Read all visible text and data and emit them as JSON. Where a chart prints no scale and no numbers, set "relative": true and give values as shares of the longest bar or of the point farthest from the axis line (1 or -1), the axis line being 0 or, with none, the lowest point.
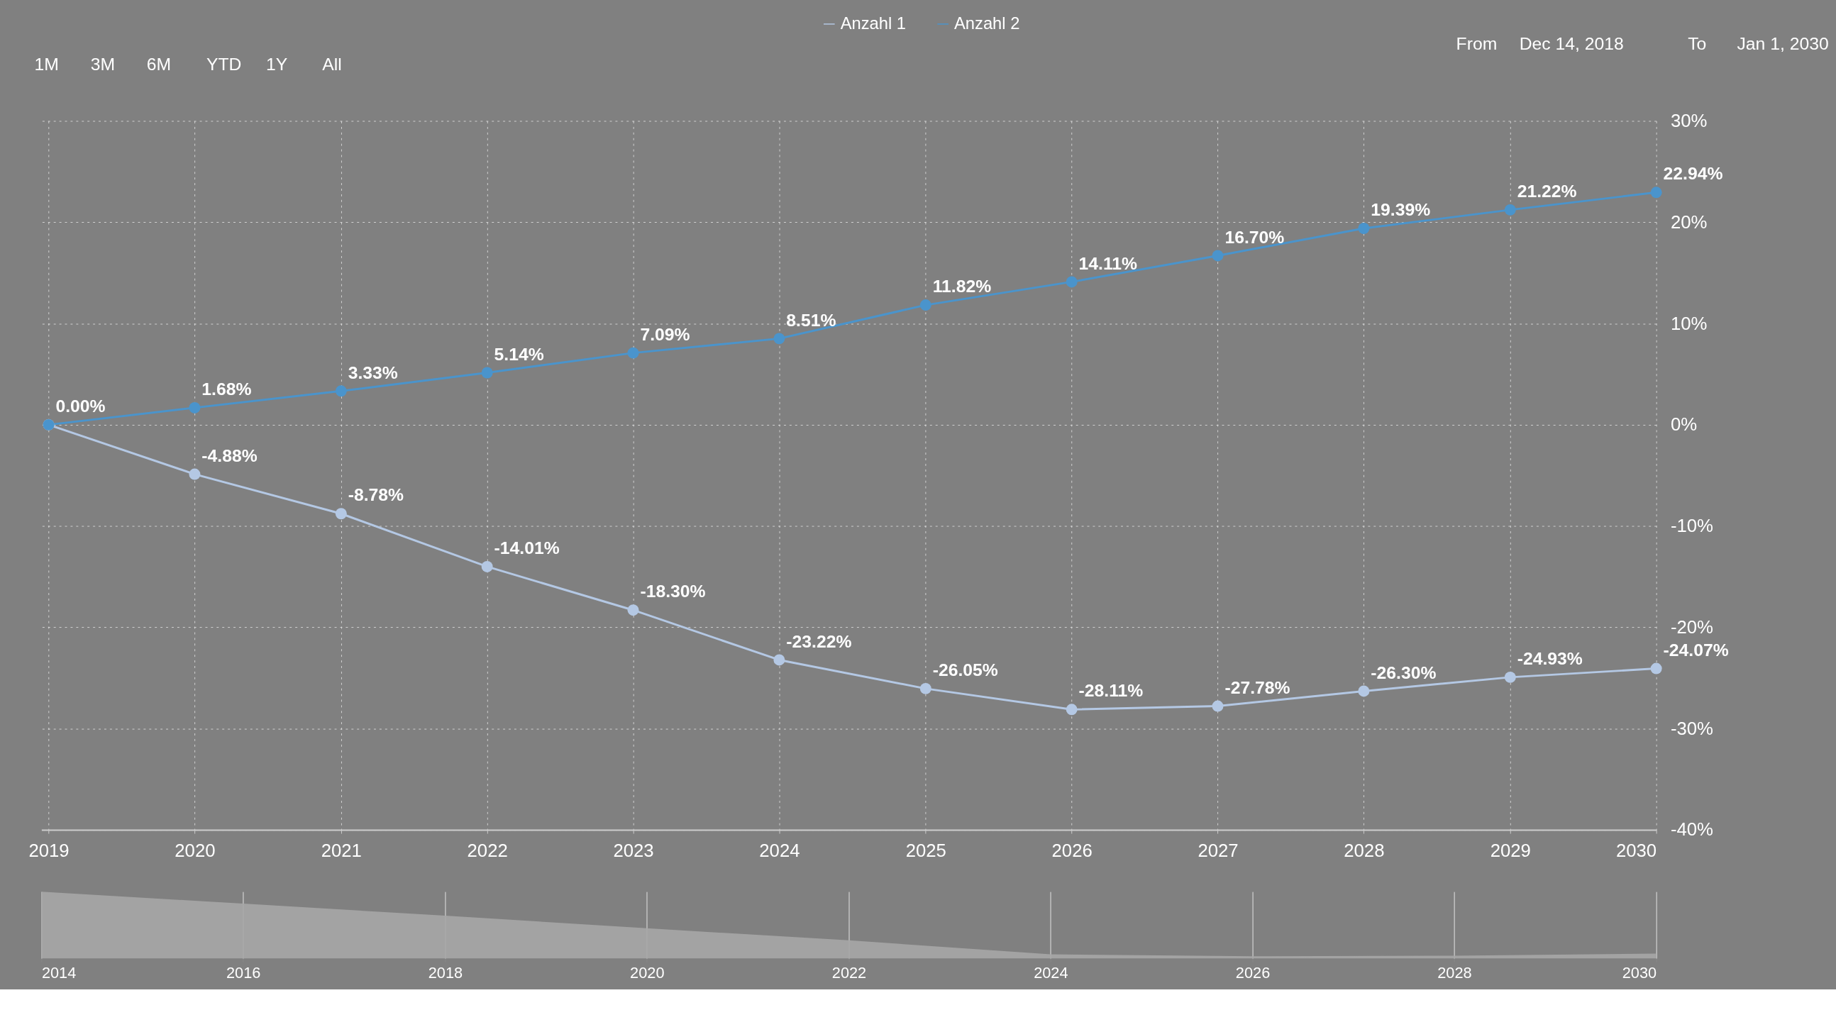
{
  "chart_data": [
    {
      "type": "line",
      "x": [
        "2019",
        "2020",
        "2021",
        "2022",
        "2023",
        "2024",
        "2025",
        "2026",
        "2027",
        "2028",
        "2029",
        "2030"
      ],
      "series": [
        {
          "name": "Anzahl 1",
          "color": "#b4c8e4",
          "values": [
            0.0,
            -4.88,
            -8.78,
            -14.01,
            -18.3,
            -23.22,
            -26.05,
            -28.11,
            -27.78,
            -26.3,
            -24.93,
            -24.07
          ],
          "value_labels": [
            null,
            "-4.88%",
            "-8.78%",
            "-14.01%",
            "-18.30%",
            "-23.22%",
            "-26.05%",
            "-28.11%",
            "-27.78%",
            "-26.30%",
            "-24.93%",
            "-24.07%"
          ]
        },
        {
          "name": "Anzahl 2",
          "color": "#4a94cc",
          "values": [
            0.0,
            1.68,
            3.33,
            5.14,
            7.09,
            8.51,
            11.82,
            14.11,
            16.7,
            19.39,
            21.22,
            22.94
          ],
          "value_labels": [
            "0.00%",
            "1.68%",
            "3.33%",
            "5.14%",
            "7.09%",
            "8.51%",
            "11.82%",
            "14.11%",
            "16.70%",
            "19.39%",
            "21.22%",
            "22.94%"
          ]
        }
      ],
      "xlim": [
        "2018-12-14",
        "2030-01-01"
      ],
      "xticks": [
        "2019",
        "2020",
        "2021",
        "2022",
        "2023",
        "2024",
        "2025",
        "2026",
        "2027",
        "2028",
        "2029",
        "2030"
      ],
      "ylim": [
        -40,
        30
      ],
      "yticks": [
        {
          "value": -40,
          "label": "-40%"
        },
        {
          "value": -30,
          "label": "-30%"
        },
        {
          "value": -20,
          "label": "-20%"
        },
        {
          "value": -10,
          "label": "-10%"
        },
        {
          "value": 0,
          "label": "0%"
        },
        {
          "value": 10,
          "label": "10%"
        },
        {
          "value": 20,
          "label": "20%"
        },
        {
          "value": 30,
          "label": "30%"
        }
      ],
      "grid": true,
      "marker": "circle",
      "line_style": "solid",
      "legend": "top",
      "annotations": [
        "1M",
        "3M",
        "6M",
        "YTD",
        "1Y",
        "All",
        "From",
        "Dec 14, 2018",
        "To",
        "Jan 1, 2030"
      ]
    },
    {
      "type": "area",
      "relative": true,
      "x": [
        "2014",
        "2016",
        "2018",
        "2020",
        "2022",
        "2024",
        "2026",
        "2028",
        "2030"
      ],
      "values": [
        1,
        0.82,
        0.64,
        0.45,
        0.27,
        0.06,
        0.03,
        0.04,
        0.07
      ],
      "color": "#a6a6a6",
      "xlim": [
        "2014",
        "2030"
      ],
      "grid": "x",
      "xticks": [
        "2014",
        "2016",
        "2018",
        "2020",
        "2022",
        "2024",
        "2026",
        "2028",
        "2030"
      ]
    }
  ]
}
